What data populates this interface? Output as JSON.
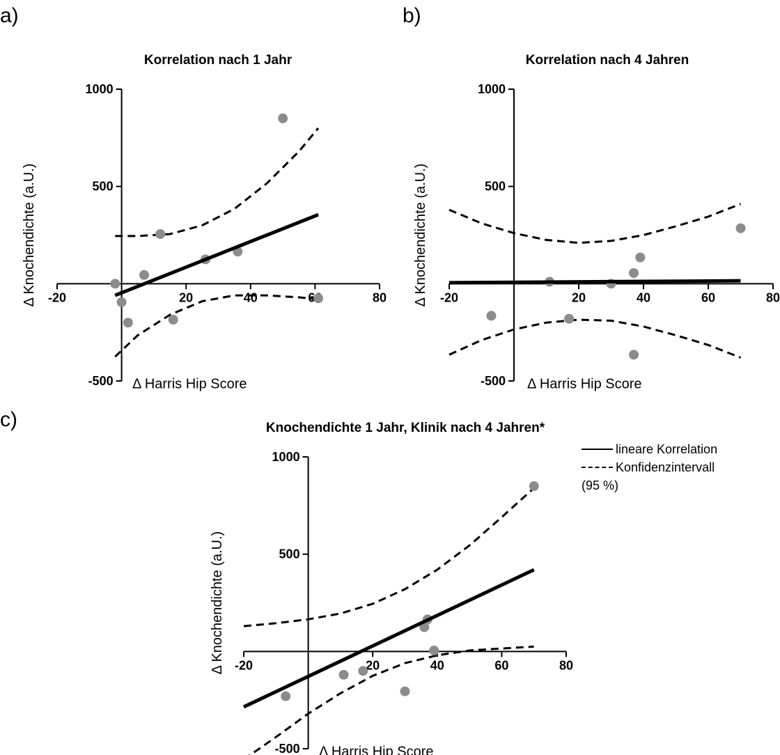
{
  "panel_labels": [
    "a)",
    "b)",
    "c)"
  ],
  "legend": {
    "solid_label": "lineare Korrelation",
    "dashed_label": "Konfidenzintervall",
    "dashed_label_2": "(95 %)"
  },
  "chart_data": [
    {
      "type": "scatter",
      "title": "Korrelation nach 1 Jahr",
      "xlabel": "Δ Harris Hip Score",
      "ylabel": "Δ Knochendichte (a.U.)",
      "xlim": [
        -20,
        80
      ],
      "ylim": [
        -500,
        1000
      ],
      "xticks": [
        -20,
        20,
        40,
        60,
        80
      ],
      "yticks": [
        -500,
        500,
        1000
      ],
      "points": [
        {
          "x": -2,
          "y": 0
        },
        {
          "x": 0,
          "y": -95
        },
        {
          "x": 2,
          "y": -200
        },
        {
          "x": 7,
          "y": 45
        },
        {
          "x": 12,
          "y": 255
        },
        {
          "x": 16,
          "y": -185
        },
        {
          "x": 26,
          "y": 125
        },
        {
          "x": 36,
          "y": 165
        },
        {
          "x": 50,
          "y": 850
        },
        {
          "x": 61,
          "y": -75
        }
      ],
      "fit": [
        [
          -2,
          -60
        ],
        [
          61,
          355
        ]
      ],
      "ci_upper": [
        [
          -2,
          245
        ],
        [
          5,
          245
        ],
        [
          15,
          255
        ],
        [
          25,
          300
        ],
        [
          35,
          385
        ],
        [
          45,
          515
        ],
        [
          55,
          680
        ],
        [
          61,
          800
        ]
      ],
      "ci_lower": [
        [
          -2,
          -375
        ],
        [
          5,
          -265
        ],
        [
          15,
          -160
        ],
        [
          25,
          -90
        ],
        [
          35,
          -60
        ],
        [
          45,
          -60
        ],
        [
          55,
          -70
        ],
        [
          61,
          -80
        ]
      ]
    },
    {
      "type": "scatter",
      "title": "Korrelation nach 4 Jahren",
      "xlabel": "Δ Harris Hip Score",
      "ylabel": "Δ Knochendichte (a.U.)",
      "xlim": [
        -20,
        80
      ],
      "ylim": [
        -500,
        1000
      ],
      "xticks": [
        -20,
        20,
        40,
        60,
        80
      ],
      "yticks": [
        -500,
        500,
        1000
      ],
      "points": [
        {
          "x": -7,
          "y": -165
        },
        {
          "x": 11,
          "y": 10
        },
        {
          "x": 17,
          "y": -180
        },
        {
          "x": 30,
          "y": 0
        },
        {
          "x": 37,
          "y": 55
        },
        {
          "x": 39,
          "y": 135
        },
        {
          "x": 37,
          "y": -365
        },
        {
          "x": 70,
          "y": 285
        }
      ],
      "fit": [
        [
          -20,
          5
        ],
        [
          70,
          15
        ]
      ],
      "ci_upper": [
        [
          -20,
          380
        ],
        [
          -10,
          310
        ],
        [
          0,
          260
        ],
        [
          10,
          225
        ],
        [
          20,
          210
        ],
        [
          30,
          220
        ],
        [
          40,
          250
        ],
        [
          50,
          295
        ],
        [
          60,
          345
        ],
        [
          70,
          410
        ]
      ],
      "ci_lower": [
        [
          -20,
          -365
        ],
        [
          -10,
          -290
        ],
        [
          0,
          -235
        ],
        [
          10,
          -200
        ],
        [
          20,
          -185
        ],
        [
          30,
          -190
        ],
        [
          40,
          -220
        ],
        [
          50,
          -265
        ],
        [
          60,
          -315
        ],
        [
          70,
          -380
        ]
      ]
    },
    {
      "type": "scatter",
      "title": "Knochendichte 1 Jahr, Klinik nach 4 Jahren*",
      "xlabel": "Δ Harris Hip Score",
      "ylabel": "Δ Knochendichte (a.U.)",
      "xlim": [
        -20,
        80
      ],
      "ylim": [
        -500,
        1000
      ],
      "xticks": [
        -20,
        20,
        40,
        60,
        80
      ],
      "yticks": [
        -500,
        500,
        1000
      ],
      "points": [
        {
          "x": -7,
          "y": -230
        },
        {
          "x": 11,
          "y": -120
        },
        {
          "x": 17,
          "y": -100
        },
        {
          "x": 30,
          "y": -205
        },
        {
          "x": 36,
          "y": 125
        },
        {
          "x": 37,
          "y": 165
        },
        {
          "x": 39,
          "y": 5
        },
        {
          "x": 70,
          "y": 850
        }
      ],
      "fit": [
        [
          -20,
          -285
        ],
        [
          70,
          420
        ]
      ],
      "ci_upper": [
        [
          -20,
          130
        ],
        [
          -10,
          145
        ],
        [
          0,
          165
        ],
        [
          10,
          195
        ],
        [
          20,
          245
        ],
        [
          30,
          320
        ],
        [
          40,
          420
        ],
        [
          50,
          545
        ],
        [
          60,
          690
        ],
        [
          70,
          840
        ]
      ],
      "ci_lower": [
        [
          -20,
          -555
        ],
        [
          -10,
          -440
        ],
        [
          0,
          -320
        ],
        [
          10,
          -215
        ],
        [
          20,
          -125
        ],
        [
          30,
          -60
        ],
        [
          40,
          -20
        ],
        [
          50,
          5
        ],
        [
          60,
          15
        ],
        [
          70,
          25
        ]
      ]
    }
  ]
}
